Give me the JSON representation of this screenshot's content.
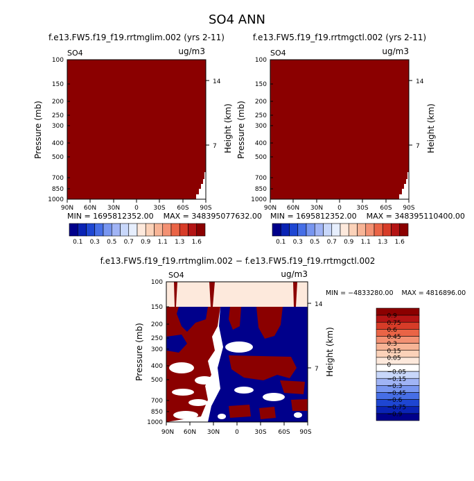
{
  "page_title": "SO4 ANN",
  "chart_data": [
    {
      "type": "heatmap",
      "title": "f.e13.FW5.f19_f19.rrtmglim.002 (yrs 2-11)",
      "variable_label": "SO4",
      "units_label": "ug/m3",
      "ylabel": "Pressure (mb)",
      "ylabel_right": "Height (km)",
      "x_ticks": [
        "90N",
        "60N",
        "30N",
        "0",
        "30S",
        "60S",
        "90S"
      ],
      "y_ticks": [
        "100",
        "150",
        "200",
        "250",
        "300",
        "400",
        "500",
        "700",
        "850",
        "1000"
      ],
      "y_ticks_right": [
        "14",
        "7"
      ],
      "ylim": [
        1000,
        100
      ],
      "fill_color": "#8b0000",
      "stats": "MIN = 1695812352.00    MAX = 348395077632.00"
    },
    {
      "type": "heatmap",
      "title": "f.e13.FW5.f19_f19.rrtmgctl.002 (yrs 2-11)",
      "variable_label": "SO4",
      "units_label": "ug/m3",
      "ylabel": "Pressure (mb)",
      "ylabel_right": "Height (km)",
      "x_ticks": [
        "90N",
        "60N",
        "30N",
        "0",
        "30S",
        "60S",
        "90S"
      ],
      "y_ticks": [
        "100",
        "150",
        "200",
        "250",
        "300",
        "400",
        "500",
        "700",
        "850",
        "1000"
      ],
      "y_ticks_right": [
        "14",
        "7"
      ],
      "ylim": [
        1000,
        100
      ],
      "fill_color": "#8b0000",
      "stats": "MIN = 1695812352.00    MAX = 348395110400.00"
    },
    {
      "type": "heatmap",
      "title": "f.e13.FW5.f19_f19.rrtmglim.002 − f.e13.FW5.f19_f19.rrtmgctl.002",
      "variable_label": "SO4",
      "units_label": "ug/m3",
      "ylabel": "Pressure (mb)",
      "ylabel_right": "Height (km)",
      "x_ticks": [
        "90N",
        "60N",
        "30N",
        "0",
        "30S",
        "60S",
        "90S"
      ],
      "y_ticks": [
        "100",
        "150",
        "200",
        "250",
        "300",
        "400",
        "500",
        "700",
        "850",
        "1000"
      ],
      "y_ticks_right": [
        "14",
        "7"
      ],
      "ylim": [
        1000,
        100
      ],
      "stats": "MIN = −4833280.00    MAX = 4816896.00"
    }
  ],
  "colorbar_top": {
    "labels": [
      "0.1",
      "0.3",
      "0.5",
      "0.7",
      "0.9",
      "1.1",
      "1.3",
      "1.6"
    ],
    "colors": [
      "#00008b",
      "#0a23b4",
      "#1e46d2",
      "#466ee6",
      "#7896f0",
      "#a0b4f5",
      "#c8d7fa",
      "#e6eefd",
      "#fde9dc",
      "#fbd2b9",
      "#f7b496",
      "#f39173",
      "#ea6446",
      "#d73c28",
      "#b41414",
      "#8b0000"
    ]
  },
  "colorbar_diff": {
    "labels": [
      "0.9",
      "0.75",
      "0.6",
      "0.45",
      "0.3",
      "0.15",
      "0.05",
      "0",
      "−0.05",
      "−0.15",
      "−0.3",
      "−0.45",
      "−0.6",
      "−0.75",
      "−0.9"
    ],
    "colors": [
      "#8b0000",
      "#b41414",
      "#d73c28",
      "#ea6446",
      "#f39173",
      "#f7b496",
      "#fbd2b9",
      "#fde9dc",
      "#ffffff",
      "#c8d7fa",
      "#a0b4f5",
      "#7896f0",
      "#466ee6",
      "#1e46d2",
      "#0a23b4",
      "#00008b"
    ]
  },
  "palette": {
    "dark_red": "#8b0000",
    "navy": "#00008b",
    "peach": "#fde9dc",
    "white": "#ffffff"
  }
}
